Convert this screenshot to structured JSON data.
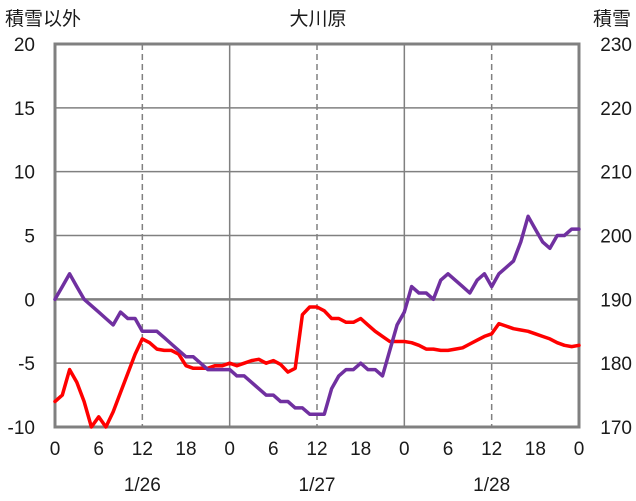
{
  "chart_data": {
    "type": "line",
    "title": "大川原",
    "left_axis_label": "積雪以外",
    "right_axis_label": "積雪",
    "left_ylim": [
      -10,
      20
    ],
    "right_ylim": [
      170,
      230
    ],
    "left_ticks": [
      "20",
      "15",
      "10",
      "5",
      "0",
      "-5",
      "-10"
    ],
    "right_ticks": [
      "230",
      "220",
      "210",
      "200",
      "190",
      "180",
      "170"
    ],
    "x_hour_ticks": [
      "0",
      "6",
      "12",
      "18",
      "0",
      "6",
      "12",
      "18",
      "0",
      "6",
      "12",
      "18",
      "0"
    ],
    "dates": [
      "1/26",
      "1/27",
      "1/28"
    ],
    "grid": true,
    "series": [
      {
        "color": "#ff0000",
        "axis": "left",
        "x": [
          0,
          1,
          2,
          3,
          4,
          5,
          6,
          7,
          8,
          9,
          10,
          11,
          12,
          13,
          14,
          15,
          16,
          17,
          18,
          19,
          20,
          21,
          22,
          23,
          24,
          25,
          26,
          27,
          28,
          29,
          30,
          31,
          32,
          33,
          34,
          35,
          36,
          37,
          38,
          39,
          40,
          41,
          42,
          43,
          44,
          45,
          46,
          47,
          48,
          49,
          50,
          51,
          52,
          53,
          54,
          55,
          56,
          57,
          58,
          59,
          60,
          61,
          62,
          63,
          64,
          65,
          66,
          67,
          68,
          69,
          70,
          71,
          72
        ],
        "values": [
          -8,
          -7.5,
          -5.5,
          -6.5,
          -8,
          -10,
          -9.2,
          -10,
          -8.8,
          -7.3,
          -5.8,
          -4.3,
          -3.1,
          -3.4,
          -3.9,
          -4,
          -4,
          -4.3,
          -5.2,
          -5.4,
          -5.4,
          -5.4,
          -5.2,
          -5.2,
          -5,
          -5.2,
          -5,
          -4.8,
          -4.7,
          -5,
          -4.8,
          -5.1,
          -5.7,
          -5.4,
          -1.2,
          -0.6,
          -0.6,
          -0.9,
          -1.5,
          -1.5,
          -1.8,
          -1.8,
          -1.5,
          -2,
          -2.5,
          -2.9,
          -3.3,
          -3.3,
          -3.3,
          -3.4,
          -3.6,
          -3.9,
          -3.9,
          -4,
          -4,
          -3.9,
          -3.8,
          -3.5,
          -3.2,
          -2.9,
          -2.7,
          -1.9,
          -2.1,
          -2.3,
          -2.4,
          -2.5,
          -2.7,
          -2.9,
          -3.1,
          -3.4,
          -3.6,
          -3.7,
          -3.6
        ]
      },
      {
        "color": "#7030a0",
        "axis": "right",
        "x": [
          0,
          1,
          2,
          3,
          4,
          5,
          6,
          7,
          8,
          9,
          10,
          11,
          12,
          13,
          14,
          15,
          16,
          17,
          18,
          19,
          20,
          21,
          22,
          23,
          24,
          25,
          26,
          27,
          28,
          29,
          30,
          31,
          32,
          33,
          34,
          35,
          36,
          37,
          38,
          39,
          40,
          41,
          42,
          43,
          44,
          45,
          46,
          47,
          48,
          49,
          50,
          51,
          52,
          53,
          54,
          55,
          56,
          57,
          58,
          59,
          60,
          61,
          62,
          63,
          64,
          65,
          66,
          67,
          68,
          69,
          70,
          71,
          72
        ],
        "values": [
          190,
          192,
          194,
          192,
          190,
          189,
          188,
          187,
          186,
          188,
          187,
          187,
          185,
          185,
          185,
          184,
          183,
          182,
          181,
          181,
          180,
          179,
          179,
          179,
          179,
          178,
          178,
          177,
          176,
          175,
          175,
          174,
          174,
          173,
          173,
          172,
          172,
          172,
          176,
          178,
          179,
          179,
          180,
          179,
          179,
          178,
          182,
          186,
          188,
          192,
          191,
          191,
          190,
          193,
          194,
          193,
          192,
          191,
          193,
          194,
          192,
          194,
          195,
          196,
          199,
          203,
          201,
          199,
          198,
          200,
          200,
          201,
          201
        ]
      }
    ]
  }
}
